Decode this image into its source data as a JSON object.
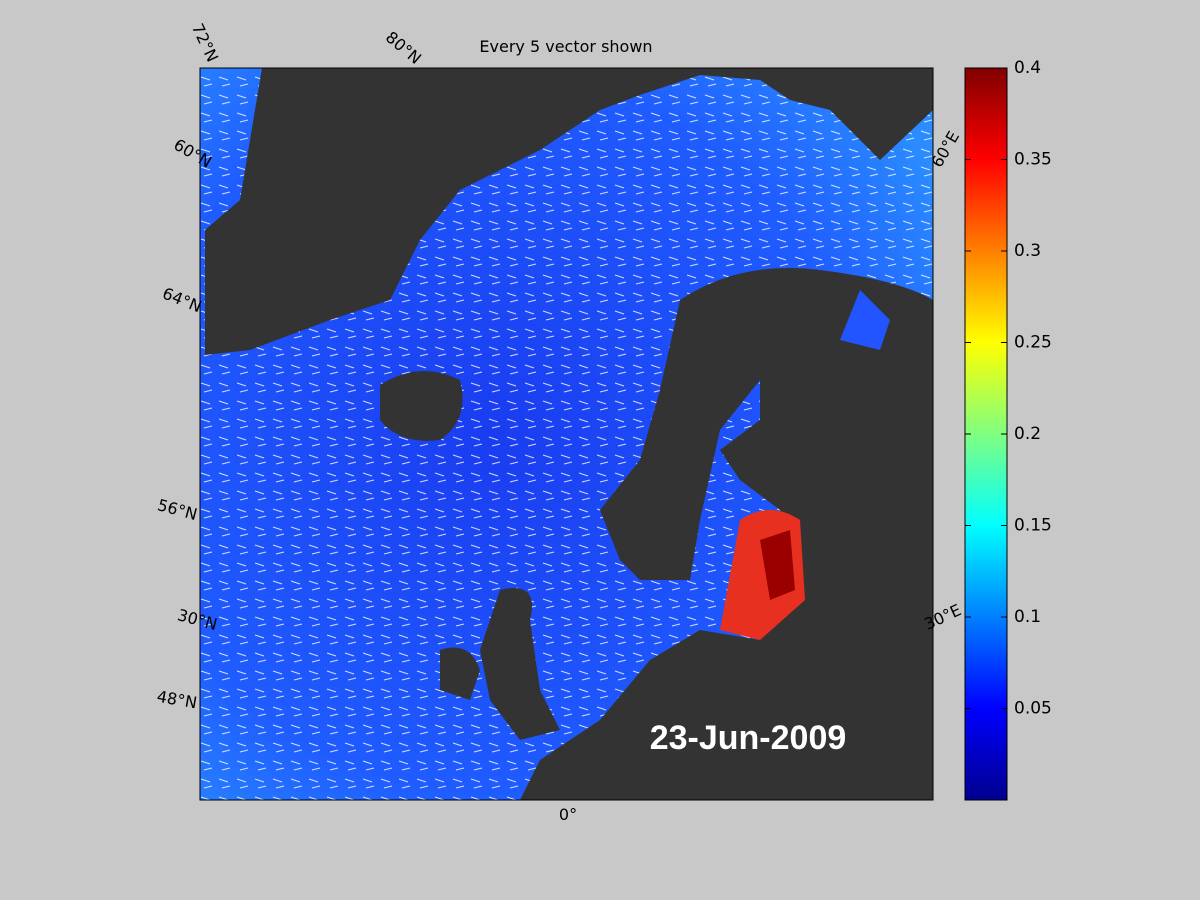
{
  "title": "Every 5 vector shown",
  "date_label": "23-Jun-2009",
  "map_labels": [
    "72°N",
    "80°N",
    "60°N",
    "64°N",
    "56°N",
    "30°N",
    "48°N",
    "0°",
    "30°E",
    "60°E"
  ],
  "colorbar": {
    "colormap": "jet",
    "clim": [
      0,
      0.4
    ],
    "ticks": [
      0.05,
      0.1,
      0.15,
      0.2,
      0.25,
      0.3,
      0.35,
      0.4
    ]
  }
}
